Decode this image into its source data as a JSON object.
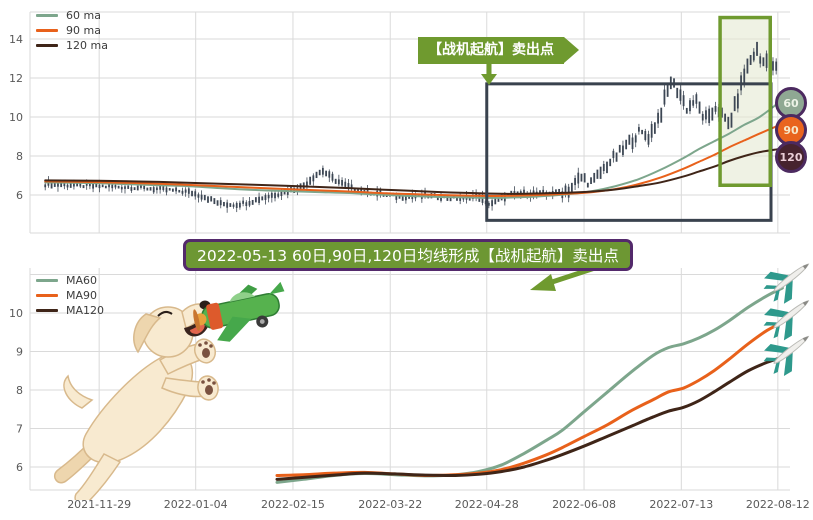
{
  "colors": {
    "ma60": "#7da68c",
    "ma90": "#e8611b",
    "ma120": "#3f2518",
    "candle": "#3d4754",
    "grid": "#dadada",
    "axis_text": "#595959",
    "annotation_green": "#6f9a2f",
    "banner_green": "#6d9733",
    "banner_border_purple": "#53296b",
    "badge_border": "#4c2a60",
    "badge_fills": [
      "#8fa893",
      "#e9641e",
      "#47232e"
    ],
    "badge_texts": [
      "#edf3e7",
      "#f6e7c9",
      "#eccfd8"
    ],
    "dark_box": "#39424e",
    "highlight_fill": "#e4ead2",
    "highlight_border": "#6f9a2f",
    "plane_teal": "#2e998c"
  },
  "icons": {
    "airplane_marker": "airplane pointing up-right (teal)",
    "dog": "dog catching green toy plane",
    "callout_arrow": "right-pointing ribbon arrow",
    "down_arrow": "down arrow",
    "banner_arrow": "arrow pointing down-left"
  },
  "axis": {
    "x_tick_pct": [
      9.1,
      21.8,
      34.6,
      47.4,
      60.1,
      72.9,
      85.7,
      98.4
    ]
  },
  "x_labels": [
    "2021-11-29",
    "2022-01-04",
    "2022-02-15",
    "2022-03-22",
    "2022-04-28",
    "2022-06-08",
    "2022-07-13",
    "2022-08-12"
  ],
  "top_chart": {
    "legend": [
      "60 ma",
      "90 ma",
      "120 ma"
    ],
    "annotation": "【战机起航】卖出点",
    "badges": [
      {
        "label": "60"
      },
      {
        "label": "90"
      },
      {
        "label": "120"
      }
    ]
  },
  "banner": {
    "text": "2022-05-13 60日,90日,120日均线形成【战机起航】卖出点"
  },
  "bottom_chart": {
    "legend": [
      "MA60",
      "MA90",
      "MA120"
    ]
  },
  "chart_data": [
    {
      "type": "line",
      "style": "candlestick_with_moving_averages",
      "title": "",
      "legend_position": "top-left",
      "grid": true,
      "x_ticks": [
        "2021-11-29",
        "2022-01-04",
        "2022-02-15",
        "2022-03-22",
        "2022-04-28",
        "2022-06-08",
        "2022-07-13",
        "2022-08-12"
      ],
      "y_ticks": [
        6,
        8,
        10,
        12,
        14
      ],
      "ylim": [
        4.2,
        15.3
      ],
      "annotations": {
        "callout": "【战机起航】卖出点",
        "sell_box": {
          "x_pct": [
            60.1,
            97.5
          ],
          "y_values": [
            4.7,
            11.7
          ]
        },
        "highlight_box": {
          "x_pct": [
            90.8,
            97.4
          ],
          "y_values": [
            6.5,
            15.1
          ]
        }
      },
      "series": [
        {
          "name": "price",
          "color": "#3d4754",
          "points": [
            [
              2,
              6.55
            ],
            [
              6,
              6.5
            ],
            [
              9,
              6.45
            ],
            [
              13,
              6.4
            ],
            [
              17,
              6.3
            ],
            [
              21,
              6.15
            ],
            [
              23,
              5.9
            ],
            [
              25,
              5.55
            ],
            [
              27,
              5.5
            ],
            [
              29,
              5.65
            ],
            [
              31,
              5.9
            ],
            [
              34,
              6.2
            ],
            [
              36,
              6.45
            ],
            [
              37.5,
              7.0
            ],
            [
              38.5,
              7.25
            ],
            [
              40,
              6.8
            ],
            [
              42,
              6.4
            ],
            [
              44,
              6.2
            ],
            [
              46,
              6.05
            ],
            [
              49,
              5.9
            ],
            [
              52,
              5.95
            ],
            [
              55,
              5.85
            ],
            [
              57,
              5.8
            ],
            [
              59,
              5.95
            ],
            [
              60,
              5.55
            ],
            [
              61,
              5.6
            ],
            [
              63,
              6.0
            ],
            [
              65,
              6.1
            ],
            [
              67,
              6.05
            ],
            [
              69,
              6.1
            ],
            [
              71,
              6.3
            ],
            [
              72.5,
              6.9
            ],
            [
              74,
              6.6
            ],
            [
              76,
              7.6
            ],
            [
              78,
              8.3
            ],
            [
              80,
              9.2
            ],
            [
              81.5,
              9.0
            ],
            [
              83,
              10.2
            ],
            [
              84.3,
              11.85
            ],
            [
              85.5,
              11.2
            ],
            [
              86.5,
              10.4
            ],
            [
              87.5,
              10.9
            ],
            [
              88.5,
              10.1
            ],
            [
              89.3,
              9.8
            ],
            [
              90.3,
              10.6
            ],
            [
              91.3,
              9.9
            ],
            [
              92,
              9.6
            ],
            [
              93,
              10.8
            ],
            [
              94,
              12.2
            ],
            [
              94.9,
              13.0
            ],
            [
              95.6,
              13.45
            ],
            [
              96.3,
              12.7
            ],
            [
              96.9,
              13.1
            ],
            [
              97.6,
              12.4
            ],
            [
              98.4,
              12.75
            ]
          ]
        },
        {
          "name": "60 ma",
          "color": "#7da68c",
          "points": [
            [
              2,
              6.65
            ],
            [
              9,
              6.6
            ],
            [
              17,
              6.5
            ],
            [
              21,
              6.45
            ],
            [
              25,
              6.35
            ],
            [
              30,
              6.25
            ],
            [
              34,
              6.2
            ],
            [
              38,
              6.15
            ],
            [
              42,
              6.1
            ],
            [
              46,
              6.02
            ],
            [
              50,
              5.95
            ],
            [
              54,
              5.9
            ],
            [
              58,
              5.87
            ],
            [
              61,
              5.85
            ],
            [
              64,
              5.88
            ],
            [
              67,
              5.93
            ],
            [
              71,
              6.05
            ],
            [
              74,
              6.2
            ],
            [
              77,
              6.45
            ],
            [
              80,
              6.8
            ],
            [
              83,
              7.3
            ],
            [
              86,
              7.9
            ],
            [
              88,
              8.35
            ],
            [
              90,
              8.75
            ],
            [
              92,
              9.15
            ],
            [
              94,
              9.6
            ],
            [
              96,
              10.0
            ],
            [
              98.4,
              10.7
            ]
          ]
        },
        {
          "name": "90 ma",
          "color": "#e8611b",
          "points": [
            [
              2,
              6.7
            ],
            [
              9,
              6.66
            ],
            [
              17,
              6.58
            ],
            [
              25,
              6.45
            ],
            [
              34,
              6.3
            ],
            [
              42,
              6.18
            ],
            [
              46,
              6.1
            ],
            [
              50,
              6.05
            ],
            [
              54,
              6.0
            ],
            [
              58,
              5.97
            ],
            [
              61,
              5.95
            ],
            [
              64,
              5.97
            ],
            [
              67,
              6.0
            ],
            [
              71,
              6.07
            ],
            [
              74,
              6.15
            ],
            [
              77,
              6.3
            ],
            [
              80,
              6.55
            ],
            [
              83,
              6.9
            ],
            [
              86,
              7.35
            ],
            [
              88,
              7.7
            ],
            [
              90,
              8.05
            ],
            [
              92,
              8.45
            ],
            [
              94,
              8.8
            ],
            [
              96,
              9.15
            ],
            [
              98.4,
              9.55
            ]
          ]
        },
        {
          "name": "120 ma",
          "color": "#3f2518",
          "points": [
            [
              2,
              6.75
            ],
            [
              9,
              6.73
            ],
            [
              17,
              6.67
            ],
            [
              25,
              6.58
            ],
            [
              34,
              6.47
            ],
            [
              42,
              6.35
            ],
            [
              46,
              6.28
            ],
            [
              50,
              6.22
            ],
            [
              54,
              6.15
            ],
            [
              58,
              6.1
            ],
            [
              61,
              6.07
            ],
            [
              64,
              6.06
            ],
            [
              67,
              6.08
            ],
            [
              71,
              6.12
            ],
            [
              74,
              6.18
            ],
            [
              77,
              6.28
            ],
            [
              80,
              6.45
            ],
            [
              83,
              6.65
            ],
            [
              86,
              6.95
            ],
            [
              88,
              7.2
            ],
            [
              90,
              7.45
            ],
            [
              92,
              7.75
            ],
            [
              94,
              8.0
            ],
            [
              96,
              8.2
            ],
            [
              98.4,
              8.35
            ]
          ]
        }
      ]
    },
    {
      "type": "line",
      "style": "moving_averages",
      "title": "",
      "legend_position": "top-left",
      "grid": true,
      "x_ticks": [
        "2021-11-29",
        "2022-01-04",
        "2022-02-15",
        "2022-03-22",
        "2022-04-28",
        "2022-06-08",
        "2022-07-13",
        "2022-08-12"
      ],
      "y_ticks": [
        6,
        7,
        8,
        9,
        10
      ],
      "ylim": [
        5.4,
        11.2
      ],
      "series": [
        {
          "name": "MA60",
          "color": "#7da68c",
          "points": [
            [
              32.5,
              5.6
            ],
            [
              36,
              5.68
            ],
            [
              40,
              5.78
            ],
            [
              44,
              5.83
            ],
            [
              48,
              5.8
            ],
            [
              52,
              5.77
            ],
            [
              56,
              5.8
            ],
            [
              59,
              5.88
            ],
            [
              62,
              6.05
            ],
            [
              65,
              6.35
            ],
            [
              68,
              6.7
            ],
            [
              70,
              6.95
            ],
            [
              73,
              7.45
            ],
            [
              76,
              7.95
            ],
            [
              79,
              8.45
            ],
            [
              82,
              8.9
            ],
            [
              84,
              9.1
            ],
            [
              86,
              9.2
            ],
            [
              88,
              9.35
            ],
            [
              90,
              9.55
            ],
            [
              92,
              9.8
            ],
            [
              94.5,
              10.15
            ],
            [
              97,
              10.45
            ],
            [
              99,
              10.65
            ]
          ]
        },
        {
          "name": "MA90",
          "color": "#e8611b",
          "points": [
            [
              32.5,
              5.78
            ],
            [
              36,
              5.8
            ],
            [
              40,
              5.84
            ],
            [
              44,
              5.86
            ],
            [
              48,
              5.82
            ],
            [
              52,
              5.78
            ],
            [
              56,
              5.8
            ],
            [
              59,
              5.84
            ],
            [
              62,
              5.93
            ],
            [
              65,
              6.1
            ],
            [
              68,
              6.32
            ],
            [
              70,
              6.5
            ],
            [
              73,
              6.8
            ],
            [
              76,
              7.1
            ],
            [
              79,
              7.45
            ],
            [
              82,
              7.75
            ],
            [
              84,
              7.95
            ],
            [
              86,
              8.05
            ],
            [
              88,
              8.25
            ],
            [
              90,
              8.5
            ],
            [
              92,
              8.8
            ],
            [
              94.5,
              9.2
            ],
            [
              97,
              9.55
            ],
            [
              99,
              9.75
            ]
          ]
        },
        {
          "name": "MA120",
          "color": "#3f2518",
          "points": [
            [
              32.5,
              5.68
            ],
            [
              36,
              5.73
            ],
            [
              40,
              5.79
            ],
            [
              44,
              5.84
            ],
            [
              48,
              5.82
            ],
            [
              52,
              5.79
            ],
            [
              56,
              5.78
            ],
            [
              59,
              5.81
            ],
            [
              62,
              5.88
            ],
            [
              65,
              6.0
            ],
            [
              68,
              6.18
            ],
            [
              70,
              6.32
            ],
            [
              73,
              6.55
            ],
            [
              76,
              6.8
            ],
            [
              79,
              7.05
            ],
            [
              82,
              7.3
            ],
            [
              84,
              7.45
            ],
            [
              86,
              7.55
            ],
            [
              88,
              7.72
            ],
            [
              90,
              7.95
            ],
            [
              92,
              8.2
            ],
            [
              94.5,
              8.5
            ],
            [
              97,
              8.72
            ],
            [
              99,
              8.85
            ]
          ]
        }
      ]
    }
  ]
}
